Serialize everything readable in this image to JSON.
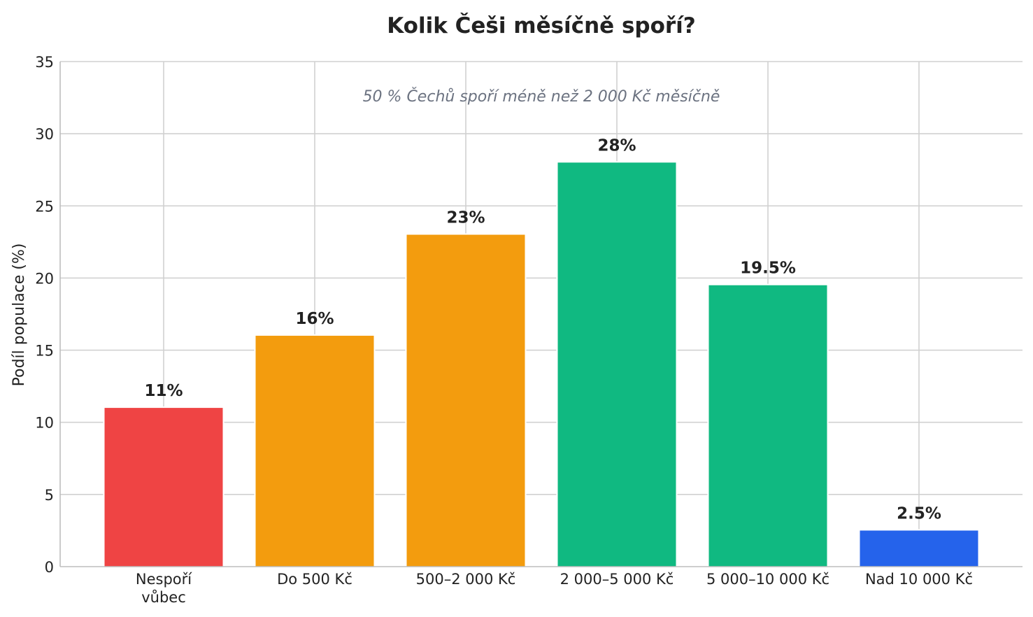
{
  "chart_data": {
    "type": "bar",
    "title": "Kolik Češi měsíčně spoří?",
    "annotation": "50 % Čechů spoří méně než 2 000 Kč měsíčně",
    "xlabel": "",
    "ylabel": "Podíl populace (%)",
    "ylim": [
      0,
      35
    ],
    "yticks": [
      "0",
      "5",
      "10",
      "15",
      "20",
      "25",
      "30",
      "35"
    ],
    "categories": [
      [
        "Nespoří",
        "vůbec"
      ],
      [
        "Do 500 Kč"
      ],
      [
        "500–2 000 Kč"
      ],
      [
        "2 000–5 000 Kč"
      ],
      [
        "5 000–10 000 Kč"
      ],
      [
        "Nad 10 000 Kč"
      ]
    ],
    "values": [
      11,
      16,
      23,
      28,
      19.5,
      2.5
    ],
    "value_labels": [
      "11%",
      "16%",
      "23%",
      "28%",
      "19.5%",
      "2.5%"
    ],
    "colors": [
      "#ef4444",
      "#f39c0e",
      "#f39c0e",
      "#10b981",
      "#10b981",
      "#2563eb"
    ],
    "grid": true
  }
}
